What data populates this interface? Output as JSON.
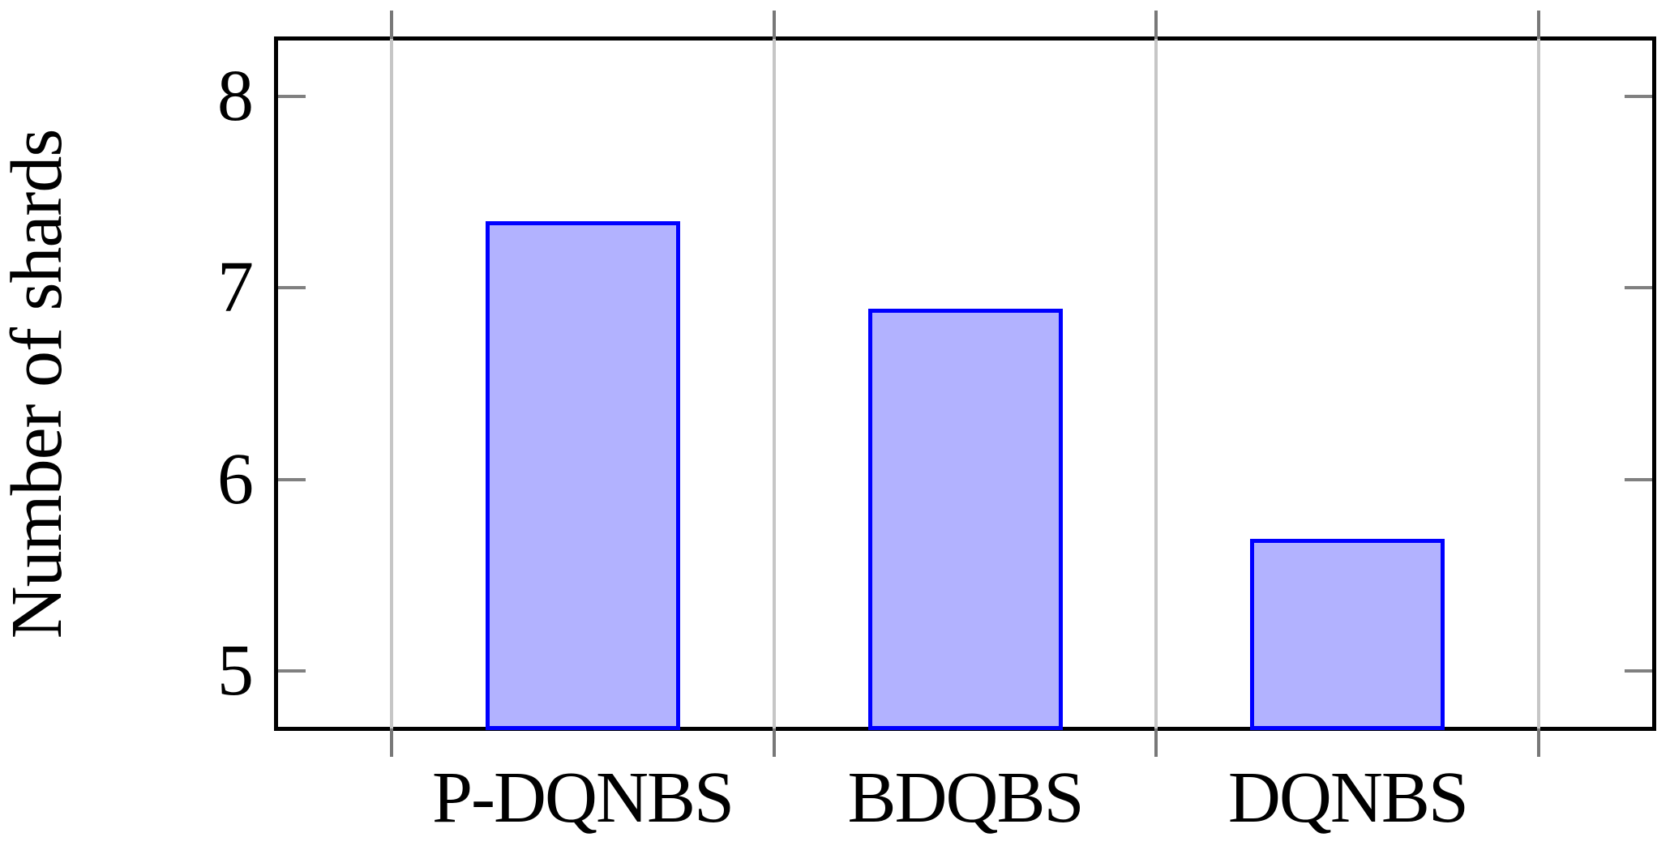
{
  "chart_data": {
    "type": "bar",
    "title": "",
    "categories": [
      "P-DQNBS",
      "BDQBS",
      "DQNBS"
    ],
    "values": [
      7.35,
      6.89,
      5.69
    ],
    "xlabel": "",
    "ylabel": "Number of shards",
    "yticks": [
      5,
      6,
      7,
      8
    ],
    "ylim": [
      4.7,
      8.3
    ],
    "category_boundaries": [
      0.5,
      1.5,
      2.5,
      3.5
    ],
    "xlim": [
      0.2,
      3.8
    ],
    "grid": "vertical-at-category-boundaries",
    "legend_position": "none",
    "bar_single_series": true
  },
  "colors": {
    "background": "#ffffff",
    "axis_frame": "#000000",
    "bar_fill": "#b2b2ff",
    "bar_border": "#0000ff",
    "gridline": "#c6c6c6",
    "tick_mark": "#808080",
    "outer_tick_extension": "#787878",
    "text": "#000000"
  }
}
